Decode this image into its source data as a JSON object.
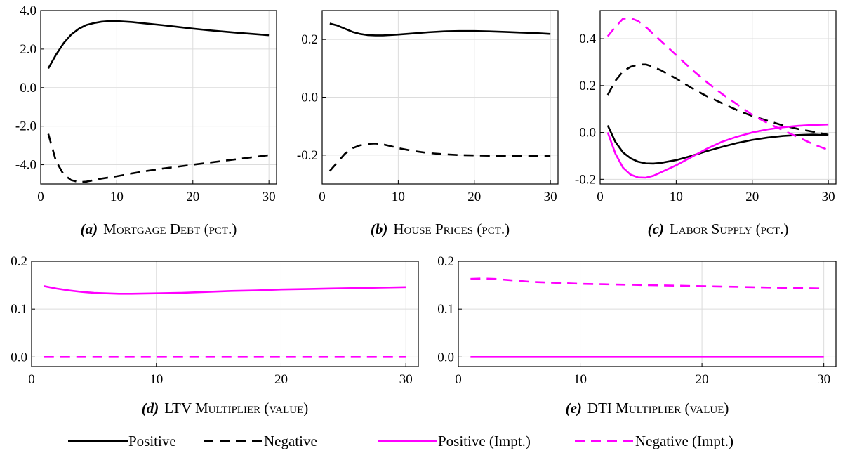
{
  "colors": {
    "positive": "#000000",
    "impt": "#ff00ff",
    "grid": "#dcdcdc",
    "axis": "#000000"
  },
  "legend": [
    {
      "label": "Positive",
      "color": "#000000",
      "dash": "solid"
    },
    {
      "label": "Negative",
      "color": "#000000",
      "dash": "dashed"
    },
    {
      "label": "Positive (Impt.)",
      "color": "#ff00ff",
      "dash": "solid"
    },
    {
      "label": "Negative (Impt.)",
      "color": "#ff00ff",
      "dash": "dashed"
    }
  ],
  "chart_data": [
    {
      "id": "a",
      "type": "line",
      "caption_letter": "(a)",
      "caption_title": "Mortgage Debt (pct.)",
      "xlim": [
        0,
        31
      ],
      "ylim": [
        -5,
        4
      ],
      "xticks": [
        0,
        10,
        20,
        30
      ],
      "yticks": [
        -4,
        -2,
        0,
        2,
        4
      ],
      "ytick_labels": [
        "-4.0",
        "-2.0",
        "0.0",
        "2.0",
        "4.0"
      ],
      "series": [
        {
          "name": "Positive",
          "color": "#000000",
          "dash": "solid",
          "x": [
            1,
            2,
            3,
            4,
            5,
            6,
            7,
            8,
            9,
            10,
            12,
            14,
            16,
            18,
            20,
            22,
            24,
            26,
            28,
            30
          ],
          "y": [
            1.0,
            1.7,
            2.3,
            2.75,
            3.05,
            3.25,
            3.35,
            3.42,
            3.45,
            3.45,
            3.4,
            3.32,
            3.24,
            3.15,
            3.06,
            2.98,
            2.91,
            2.84,
            2.78,
            2.72
          ]
        },
        {
          "name": "Negative",
          "color": "#000000",
          "dash": "dashed",
          "x": [
            1,
            2,
            3,
            4,
            5,
            6,
            7,
            8,
            10,
            12,
            14,
            16,
            18,
            20,
            22,
            24,
            26,
            28,
            30
          ],
          "y": [
            -2.4,
            -3.8,
            -4.5,
            -4.8,
            -4.9,
            -4.88,
            -4.8,
            -4.72,
            -4.6,
            -4.45,
            -4.32,
            -4.2,
            -4.1,
            -4.0,
            -3.9,
            -3.8,
            -3.7,
            -3.6,
            -3.5
          ]
        }
      ]
    },
    {
      "id": "b",
      "type": "line",
      "caption_letter": "(b)",
      "caption_title": "House Prices (pct.)",
      "xlim": [
        0,
        31
      ],
      "ylim": [
        -0.3,
        0.3
      ],
      "xticks": [
        0,
        10,
        20,
        30
      ],
      "yticks": [
        -0.2,
        0.0,
        0.2
      ],
      "ytick_labels": [
        "-0.2",
        "0.0",
        "0.2"
      ],
      "series": [
        {
          "name": "Positive",
          "color": "#000000",
          "dash": "solid",
          "x": [
            1,
            2,
            3,
            4,
            5,
            6,
            7,
            8,
            10,
            12,
            14,
            16,
            18,
            20,
            22,
            24,
            26,
            28,
            30
          ],
          "y": [
            0.255,
            0.248,
            0.237,
            0.226,
            0.219,
            0.215,
            0.214,
            0.214,
            0.217,
            0.221,
            0.225,
            0.228,
            0.229,
            0.229,
            0.228,
            0.226,
            0.224,
            0.222,
            0.219
          ]
        },
        {
          "name": "Negative",
          "color": "#000000",
          "dash": "dashed",
          "x": [
            1,
            2,
            3,
            4,
            5,
            6,
            7,
            8,
            9,
            10,
            12,
            14,
            16,
            18,
            20,
            22,
            24,
            26,
            28,
            30
          ],
          "y": [
            -0.255,
            -0.225,
            -0.195,
            -0.176,
            -0.166,
            -0.161,
            -0.16,
            -0.163,
            -0.169,
            -0.176,
            -0.186,
            -0.193,
            -0.197,
            -0.2,
            -0.201,
            -0.202,
            -0.202,
            -0.203,
            -0.203,
            -0.203
          ]
        }
      ]
    },
    {
      "id": "c",
      "type": "line",
      "caption_letter": "(c)",
      "caption_title": "Labor Supply (pct.)",
      "xlim": [
        0,
        31
      ],
      "ylim": [
        -0.22,
        0.52
      ],
      "xticks": [
        0,
        10,
        20,
        30
      ],
      "yticks": [
        -0.2,
        0.0,
        0.2,
        0.4
      ],
      "ytick_labels": [
        "-0.2",
        "0.0",
        "0.2",
        "0.4"
      ],
      "series": [
        {
          "name": "Positive",
          "color": "#000000",
          "dash": "solid",
          "x": [
            1,
            2,
            3,
            4,
            5,
            6,
            7,
            8,
            10,
            12,
            14,
            16,
            18,
            20,
            22,
            24,
            26,
            28,
            30
          ],
          "y": [
            0.03,
            -0.04,
            -0.085,
            -0.11,
            -0.125,
            -0.132,
            -0.133,
            -0.13,
            -0.118,
            -0.1,
            -0.08,
            -0.062,
            -0.045,
            -0.032,
            -0.022,
            -0.015,
            -0.011,
            -0.009,
            -0.012
          ]
        },
        {
          "name": "Negative",
          "color": "#000000",
          "dash": "dashed",
          "x": [
            1,
            2,
            3,
            4,
            5,
            6,
            7,
            8,
            10,
            12,
            14,
            16,
            18,
            20,
            22,
            24,
            26,
            28,
            30
          ],
          "y": [
            0.16,
            0.22,
            0.26,
            0.28,
            0.29,
            0.29,
            0.28,
            0.265,
            0.23,
            0.19,
            0.155,
            0.125,
            0.095,
            0.07,
            0.05,
            0.03,
            0.015,
            0.003,
            -0.01
          ]
        },
        {
          "name": "Positive (Impt.)",
          "color": "#ff00ff",
          "dash": "solid",
          "x": [
            1,
            2,
            3,
            4,
            5,
            6,
            7,
            8,
            10,
            12,
            14,
            16,
            18,
            20,
            22,
            24,
            26,
            28,
            30
          ],
          "y": [
            0.0,
            -0.09,
            -0.15,
            -0.18,
            -0.192,
            -0.193,
            -0.185,
            -0.17,
            -0.14,
            -0.105,
            -0.07,
            -0.04,
            -0.018,
            0.0,
            0.013,
            0.022,
            0.028,
            0.032,
            0.034
          ]
        },
        {
          "name": "Negative (Impt.)",
          "color": "#ff00ff",
          "dash": "dashed",
          "x": [
            1,
            2,
            3,
            4,
            5,
            6,
            7,
            8,
            10,
            12,
            14,
            16,
            18,
            20,
            22,
            24,
            26,
            28,
            30
          ],
          "y": [
            0.41,
            0.45,
            0.485,
            0.488,
            0.475,
            0.45,
            0.42,
            0.39,
            0.33,
            0.27,
            0.215,
            0.165,
            0.12,
            0.075,
            0.04,
            0.01,
            -0.02,
            -0.05,
            -0.075
          ]
        }
      ]
    },
    {
      "id": "d",
      "type": "line",
      "caption_letter": "(d)",
      "caption_title": "LTV Multiplier (value)",
      "xlim": [
        0,
        31
      ],
      "ylim": [
        -0.02,
        0.2
      ],
      "xticks": [
        0,
        10,
        20,
        30
      ],
      "yticks": [
        0.0,
        0.1,
        0.2
      ],
      "ytick_labels": [
        "0.0",
        "0.1",
        "0.2"
      ],
      "series": [
        {
          "name": "Positive (Impt.)",
          "color": "#ff00ff",
          "dash": "solid",
          "x": [
            1,
            2,
            3,
            4,
            5,
            6,
            7,
            8,
            10,
            12,
            14,
            16,
            18,
            20,
            22,
            24,
            26,
            28,
            30
          ],
          "y": [
            0.148,
            0.143,
            0.139,
            0.136,
            0.134,
            0.133,
            0.132,
            0.132,
            0.133,
            0.134,
            0.136,
            0.138,
            0.139,
            0.141,
            0.142,
            0.143,
            0.144,
            0.145,
            0.146
          ]
        },
        {
          "name": "Negative (Impt.)",
          "color": "#ff00ff",
          "dash": "dashed",
          "x": [
            1,
            30
          ],
          "y": [
            0.0,
            0.0
          ]
        }
      ]
    },
    {
      "id": "e",
      "type": "line",
      "caption_letter": "(e)",
      "caption_title": "DTI Multiplier (value)",
      "xlim": [
        0,
        31
      ],
      "ylim": [
        -0.02,
        0.2
      ],
      "xticks": [
        0,
        10,
        20,
        30
      ],
      "yticks": [
        0.0,
        0.1,
        0.2
      ],
      "ytick_labels": [
        "0.0",
        "0.1",
        "0.2"
      ],
      "series": [
        {
          "name": "Positive (Impt.)",
          "color": "#ff00ff",
          "dash": "solid",
          "x": [
            1,
            30
          ],
          "y": [
            0.0,
            0.0
          ]
        },
        {
          "name": "Negative (Impt.)",
          "color": "#ff00ff",
          "dash": "dashed",
          "x": [
            1,
            2,
            3,
            4,
            5,
            6,
            8,
            10,
            12,
            14,
            16,
            18,
            20,
            22,
            24,
            26,
            28,
            30
          ],
          "y": [
            0.163,
            0.164,
            0.163,
            0.161,
            0.159,
            0.157,
            0.155,
            0.153,
            0.152,
            0.151,
            0.15,
            0.149,
            0.148,
            0.147,
            0.146,
            0.145,
            0.144,
            0.143
          ]
        }
      ]
    }
  ]
}
